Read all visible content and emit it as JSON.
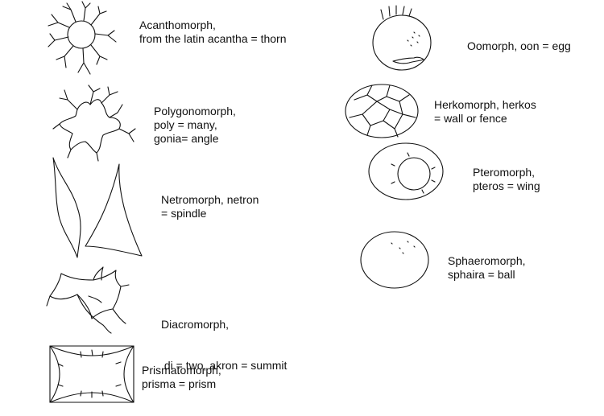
{
  "morphotypes": [
    {
      "name": "Acanthomorph,",
      "meaning": "from the latin acantha = thorn",
      "icon": "acanthomorph-icon"
    },
    {
      "name": "Polygonomorph,",
      "meaning": "poly = many,",
      "meaning2": "gonia= angle",
      "icon": "polygonomorph-icon"
    },
    {
      "name": "Netromorph, netron",
      "meaning": "= spindle",
      "icon": "netromorph-icon"
    },
    {
      "name": "Diacromorph,",
      "meaning": " di = two, akron = summit",
      "icon": "diacromorph-icon"
    },
    {
      "name": "Prismatomorph,",
      "meaning": "prisma = prism",
      "icon": "prismatomorph-icon"
    },
    {
      "name": "Oomorph, oon = egg",
      "icon": "oomorph-icon"
    },
    {
      "name": "Herkomorph, herkos",
      "meaning": "= wall or fence",
      "icon": "herkomorph-icon"
    },
    {
      "name": "Pteromorph,",
      "meaning": "pteros = wing",
      "icon": "pteromorph-icon"
    },
    {
      "name": "Sphaeromorph,",
      "meaning": "sphaira = ball",
      "icon": "sphaeromorph-icon"
    }
  ],
  "colors": {
    "ink": "#111111",
    "background": "#ffffff"
  }
}
